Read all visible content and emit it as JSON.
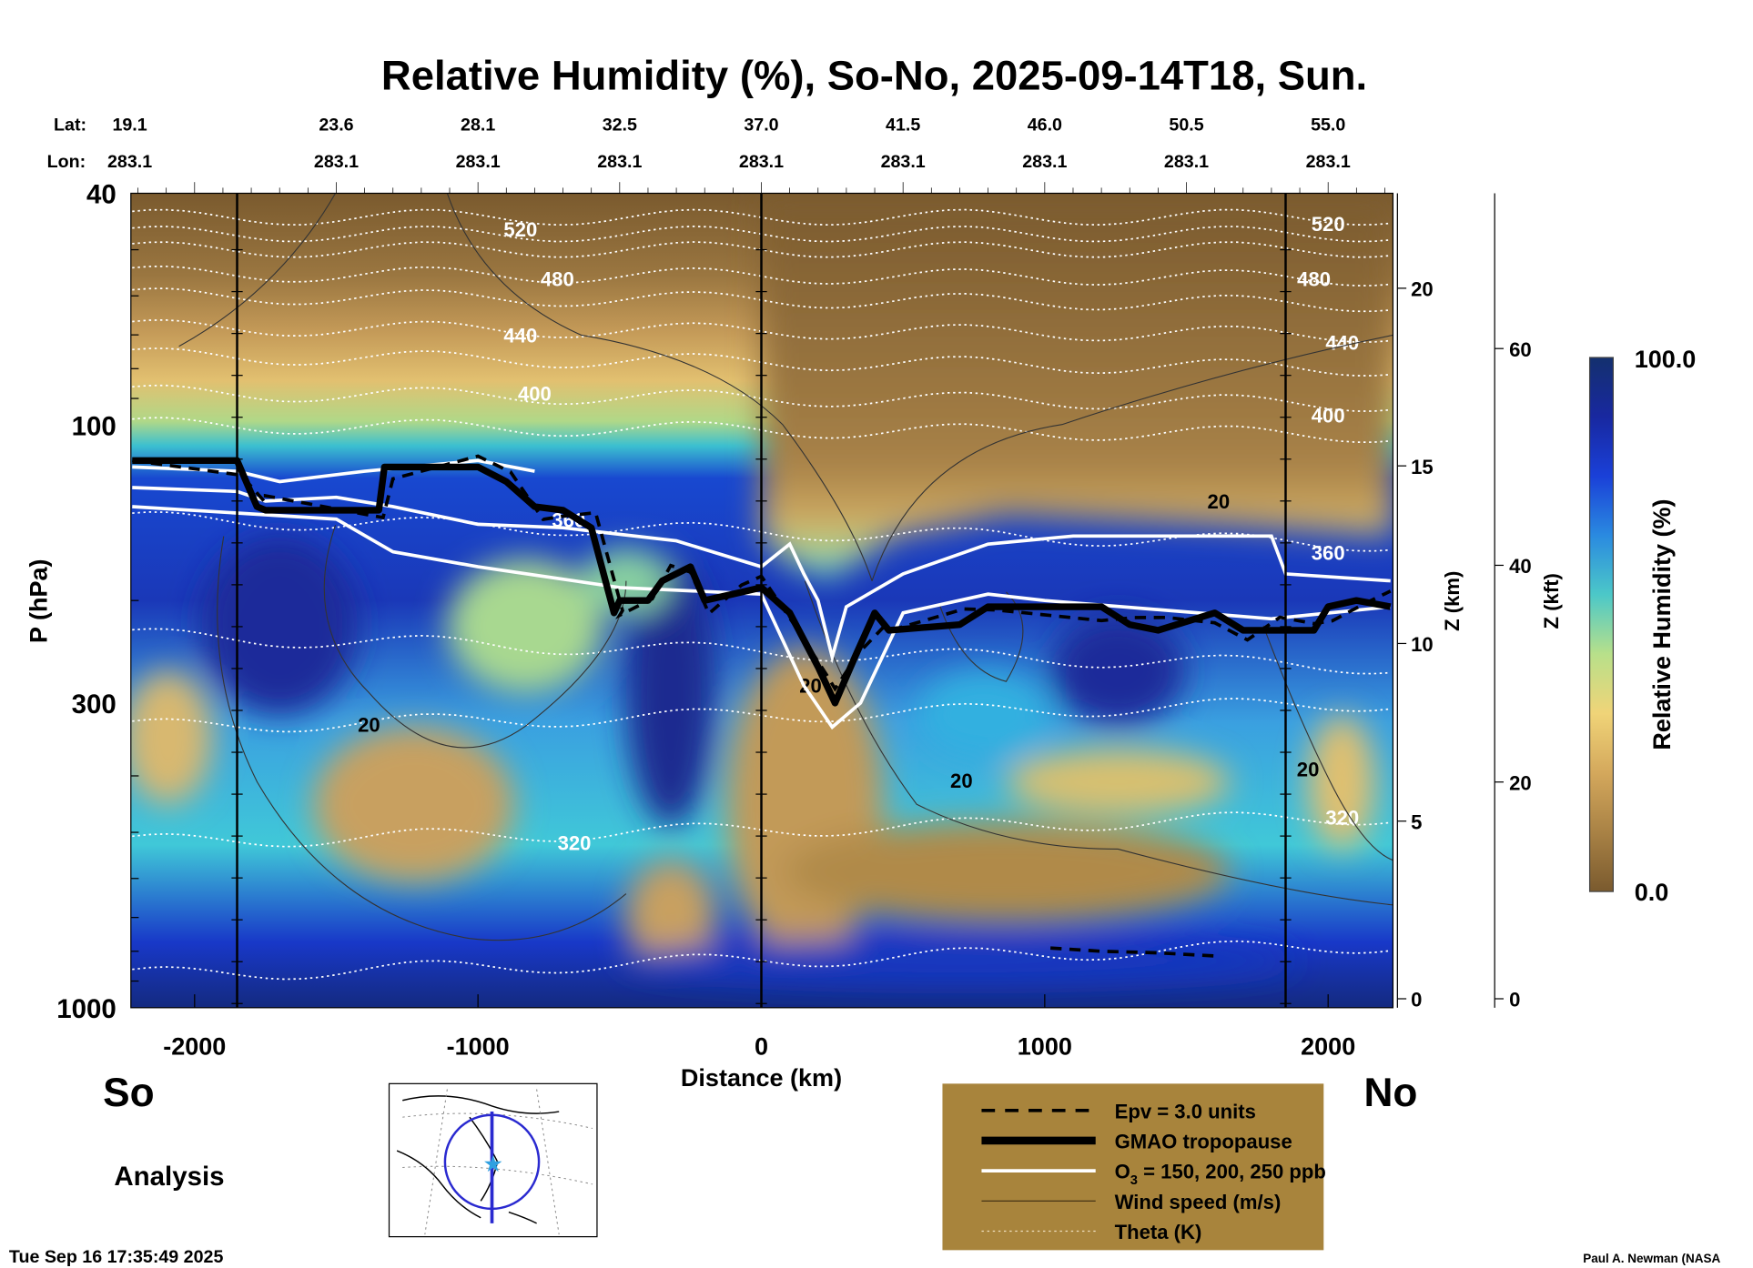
{
  "chart_data": {
    "type": "heatmap",
    "title": "Relative Humidity (%), So-No, 2025-09-14T18, Sun.",
    "xlabel": "Distance (km)",
    "ylabel": "P (hPa)",
    "y2label": "Z (km)",
    "y3label": "Z (kft)",
    "colorbar_label": "Relative Humidity (%)",
    "colorbar_max": "100.0",
    "colorbar_min": "0.0",
    "colorbar_range": [
      0,
      100
    ],
    "colorbar_colors": [
      "#7a5a2e",
      "#a98245",
      "#d4a85c",
      "#f0d478",
      "#b8e08a",
      "#4cc8c8",
      "#2a8ae0",
      "#1a40d8",
      "#1828a0",
      "#14306e"
    ],
    "xlim": [
      -2220,
      2220
    ],
    "ylim_hpa": [
      1000,
      40
    ],
    "x_ticks": [
      "-2000",
      "-1000",
      "0",
      "1000",
      "2000"
    ],
    "x_tick_values": [
      -2000,
      -1000,
      0,
      1000,
      2000
    ],
    "y_ticks": [
      "40",
      "100",
      "300",
      "1000"
    ],
    "y_tick_values": [
      40,
      100,
      300,
      1000
    ],
    "z_km_ticks": [
      "0",
      "5",
      "10",
      "15",
      "20"
    ],
    "z_kft_ticks": [
      "0",
      "20",
      "40",
      "60"
    ],
    "lat_label": "Lat:",
    "lon_label": "Lon:",
    "lat": [
      "19.1",
      "23.6",
      "28.1",
      "32.5",
      "37.0",
      "41.5",
      "46.0",
      "50.5",
      "55.0"
    ],
    "lon": [
      "283.1",
      "283.1",
      "283.1",
      "283.1",
      "283.1",
      "283.1",
      "283.1",
      "283.1",
      "283.1"
    ],
    "lat_lon_distance_km": [
      -2000,
      -1500,
      -1000,
      -500,
      0,
      500,
      1000,
      1500,
      2000
    ],
    "vertical_markers_km": [
      -1850,
      0,
      1850
    ],
    "theta_labels_left": [
      "520",
      "480",
      "440",
      "400",
      "360",
      "320"
    ],
    "theta_labels_right": [
      "520",
      "480",
      "440",
      "400",
      "360",
      "320"
    ],
    "wind_labels": [
      "20",
      "20",
      "20",
      "20",
      "20"
    ],
    "tropopause_hpa": {
      "distance_km": [
        -2220,
        -1850,
        -1780,
        -1750,
        -1350,
        -1330,
        -1000,
        -900,
        -800,
        -700,
        -600,
        -520,
        -500,
        -400,
        -350,
        -250,
        -200,
        -100,
        0,
        100,
        200,
        260,
        330,
        400,
        450,
        700,
        800,
        1200,
        1300,
        1400,
        1600,
        1700,
        1800,
        1950,
        2000,
        2100,
        2220
      ],
      "pressure": [
        115,
        115,
        138,
        140,
        140,
        118,
        118,
        125,
        138,
        140,
        150,
        210,
        200,
        200,
        185,
        175,
        200,
        195,
        190,
        210,
        260,
        300,
        250,
        210,
        225,
        220,
        205,
        205,
        220,
        225,
        210,
        225,
        225,
        225,
        205,
        200,
        205
      ]
    },
    "legend": [
      {
        "label": "Epv = 3.0 units",
        "style": "dashed"
      },
      {
        "label": "GMAO tropopause",
        "style": "thick"
      },
      {
        "label": "O",
        "sub": "3",
        "rest": " = 150, 200, 250 ppb",
        "style": "white"
      },
      {
        "label": "Wind speed (m/s)",
        "style": "thin"
      },
      {
        "label": "Theta (K)",
        "style": "dotted"
      }
    ],
    "legend_bg": "#a8843c"
  },
  "labels": {
    "south": "So",
    "north": "No",
    "analysis": "Analysis",
    "timestamp": "Tue Sep 16 17:35:49 2025",
    "credit": "Paul A. Newman (NASA"
  }
}
